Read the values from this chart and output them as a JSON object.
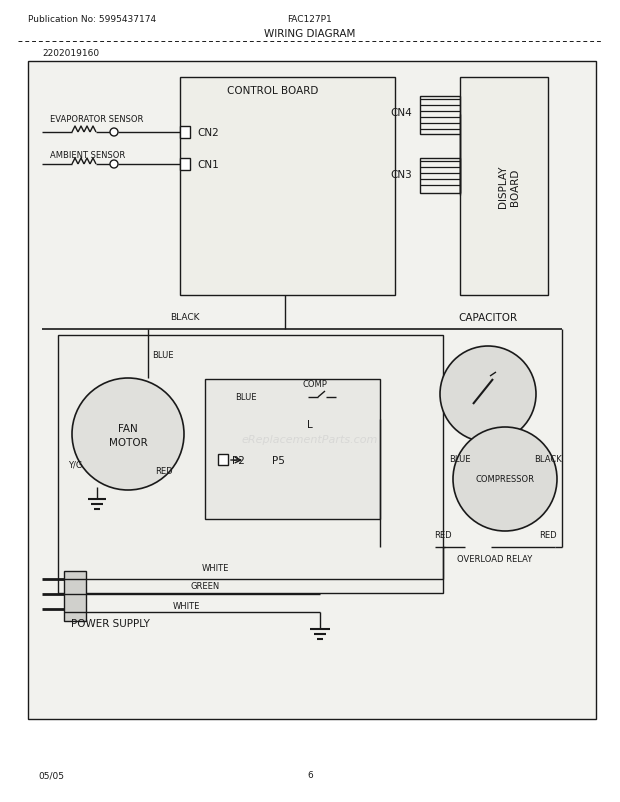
{
  "bg_color": "#ffffff",
  "border_bg": "#f2f2ee",
  "line_color": "#1a1a1a",
  "title_pub": "Publication No: 5995437174",
  "title_model": "FAC127P1",
  "title_diagram": "WIRING DIAGRAM",
  "part_number": "2202019160",
  "footer_left": "05/05",
  "footer_center": "6",
  "fs_tiny": 6.0,
  "fs_small": 6.5,
  "fs_med": 7.5,
  "fs_large": 8.5
}
